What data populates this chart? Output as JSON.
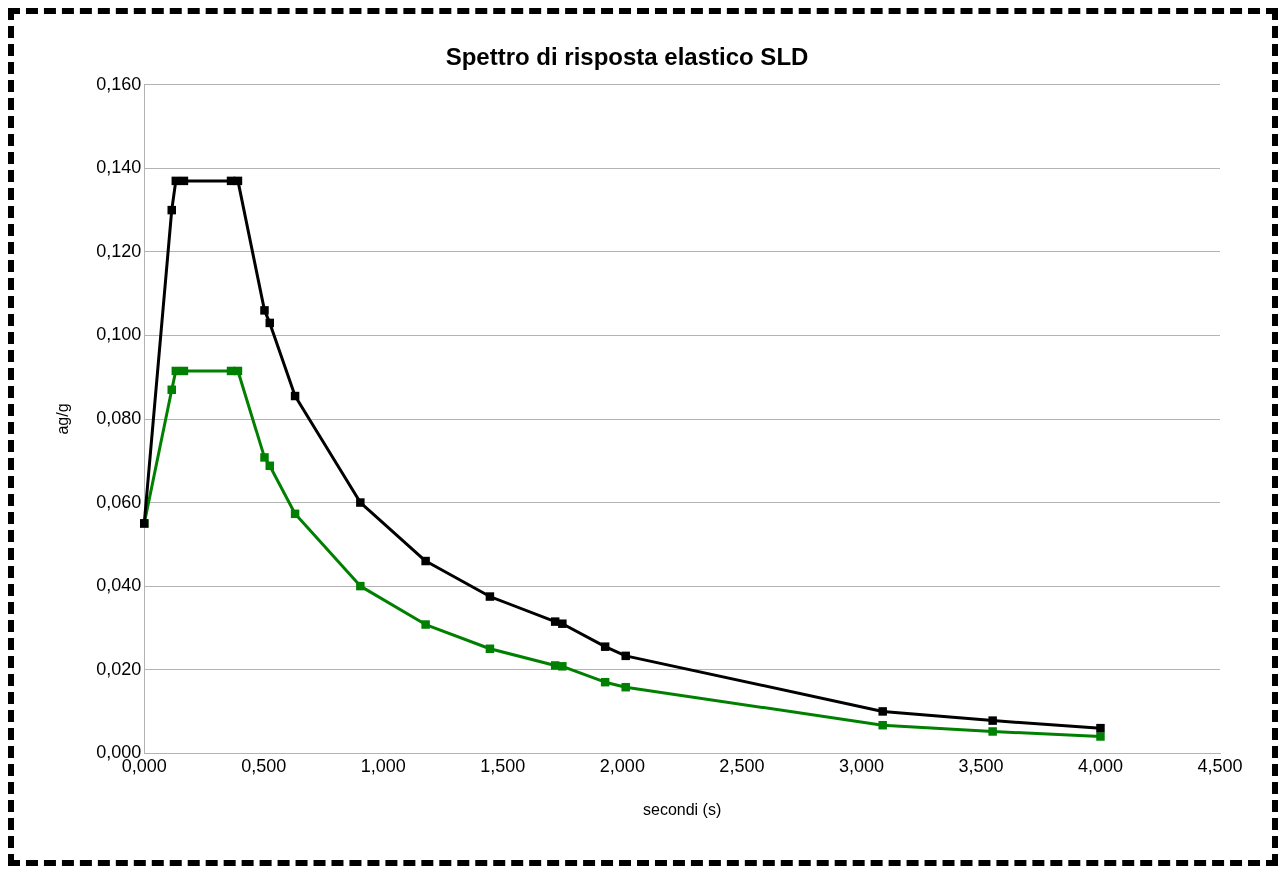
{
  "chart_data": {
    "type": "line",
    "title": "Spettro di risposta elastico SLD",
    "xlabel": "secondi (s)",
    "ylabel": "ag/g",
    "x": [
      0,
      0.115,
      0.132,
      0.166,
      0.363,
      0.392,
      0.503,
      0.525,
      0.631,
      0.904,
      1.177,
      1.446,
      1.719,
      1.749,
      1.928,
      2.014,
      3.089,
      3.549,
      4.0
    ],
    "series": [
      {
        "color": "#000000",
        "values": [
          0.055,
          0.13,
          0.137,
          0.137,
          0.137,
          0.137,
          0.106,
          0.103,
          0.0855,
          0.06,
          0.046,
          0.0375,
          0.0315,
          0.031,
          0.0255,
          0.0233,
          0.01,
          0.0078,
          0.006
        ]
      },
      {
        "color": "#008000",
        "values": [
          0.055,
          0.087,
          0.0915,
          0.0915,
          0.0915,
          0.0915,
          0.0708,
          0.0688,
          0.0573,
          0.04,
          0.0308,
          0.025,
          0.021,
          0.0208,
          0.017,
          0.0158,
          0.0067,
          0.0052,
          0.004
        ]
      }
    ],
    "xlim": [
      0,
      4.5
    ],
    "xticks": [
      {
        "value": 0,
        "label": "0,000"
      },
      {
        "value": 0.5,
        "label": "0,500"
      },
      {
        "value": 1,
        "label": "1,000"
      },
      {
        "value": 1.5,
        "label": "1,500"
      },
      {
        "value": 2,
        "label": "2,000"
      },
      {
        "value": 2.5,
        "label": "2,500"
      },
      {
        "value": 3,
        "label": "3,000"
      },
      {
        "value": 3.5,
        "label": "3,500"
      },
      {
        "value": 4,
        "label": "4,000"
      },
      {
        "value": 4.5,
        "label": "4,500"
      }
    ],
    "ylim": [
      0,
      0.16
    ],
    "yticks": [
      {
        "value": 0,
        "label": "0,000"
      },
      {
        "value": 0.02,
        "label": "0,020"
      },
      {
        "value": 0.04,
        "label": "0,040"
      },
      {
        "value": 0.06,
        "label": "0,060"
      },
      {
        "value": 0.08,
        "label": "0,080"
      },
      {
        "value": 0.1,
        "label": "0,100"
      },
      {
        "value": 0.12,
        "label": "0,120"
      },
      {
        "value": 0.14,
        "label": "0,140"
      },
      {
        "value": 0.16,
        "label": "0,160"
      }
    ],
    "grid": "y",
    "legend": false,
    "marker": "square",
    "line_style": "solid"
  }
}
